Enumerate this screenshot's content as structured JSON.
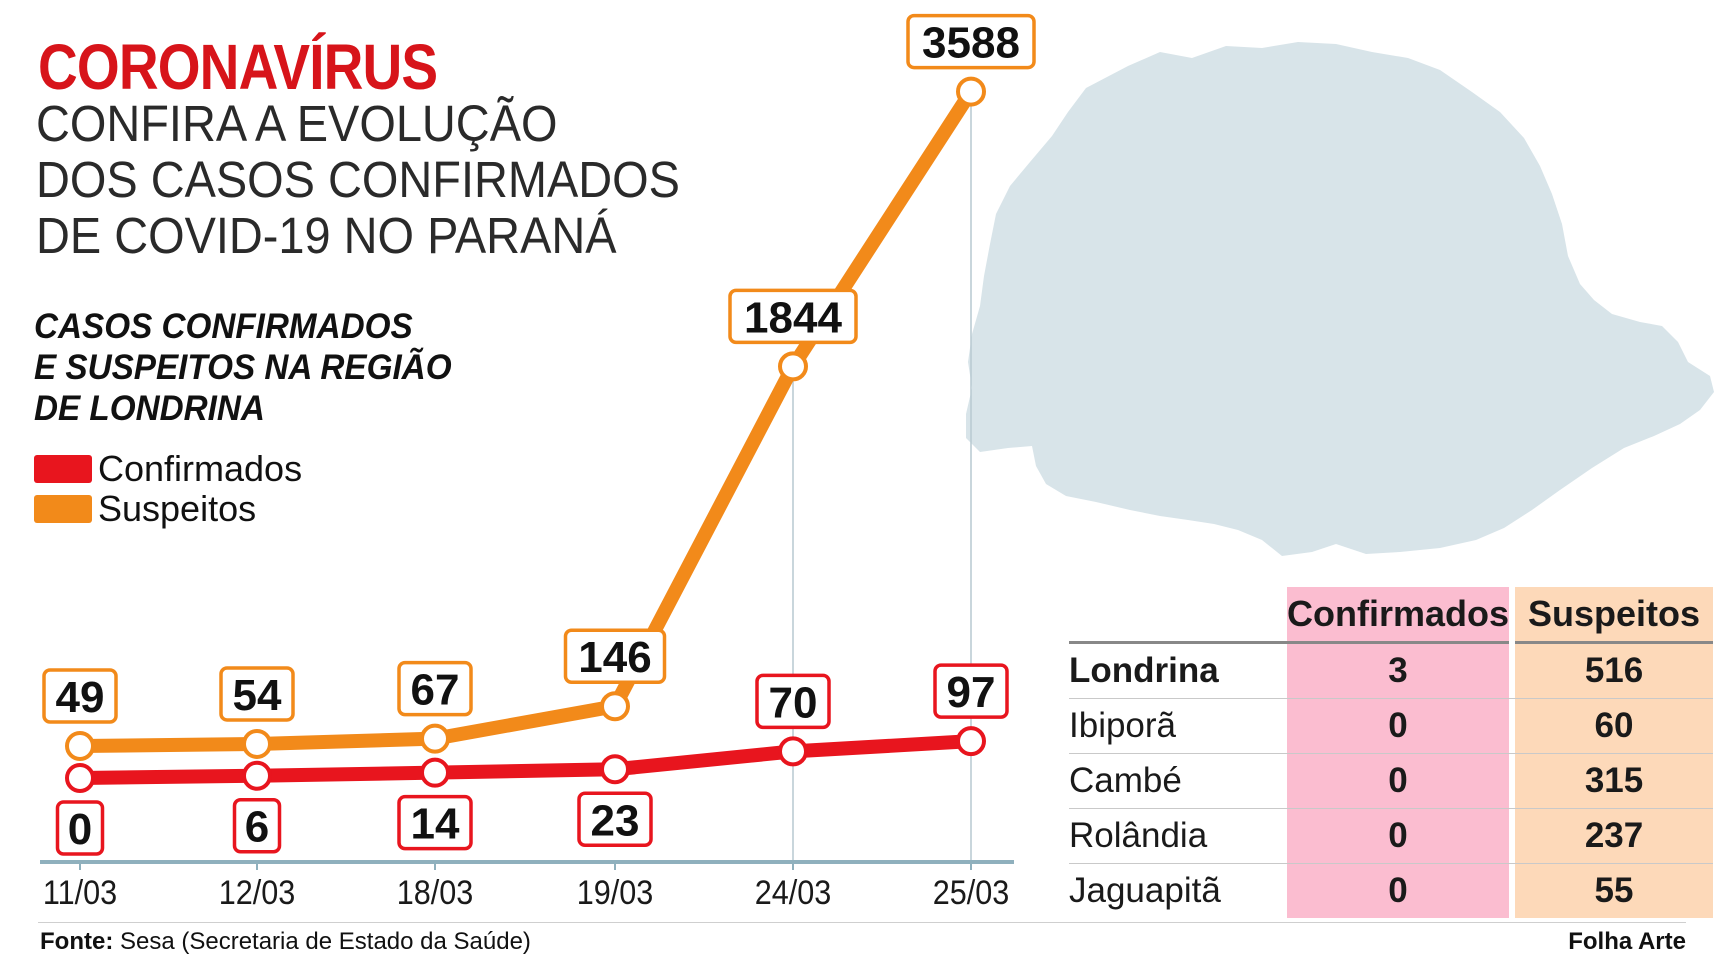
{
  "header": {
    "title": "CORONAVÍRUS",
    "subtitle_lines": [
      "CONFIRA A EVOLUÇÃO",
      "DOS CASOS CONFIRMADOS",
      "DE COVID-19 NO PARANÁ"
    ]
  },
  "section": {
    "lines": [
      "CASOS CONFIRMADOS",
      "E SUSPEITOS NA REGIÃO",
      "DE LONDRINA"
    ]
  },
  "legend": {
    "confirmed": "Confirmados",
    "suspected": "Suspeitos"
  },
  "colors": {
    "confirmed": "#e8151e",
    "suspected": "#f28a1a",
    "title": "#d7141a",
    "map": "#d8e4e9"
  },
  "chart_data": {
    "type": "line",
    "categories": [
      "11/03",
      "12/03",
      "18/03",
      "19/03",
      "24/03",
      "25/03"
    ],
    "series": [
      {
        "name": "Confirmados",
        "values": [
          0,
          6,
          14,
          23,
          70,
          97
        ]
      },
      {
        "name": "Suspeitos",
        "values": [
          49,
          54,
          67,
          146,
          1844,
          3588
        ]
      }
    ],
    "title": "CASOS CONFIRMADOS E SUSPEITOS NA REGIÃO DE LONDRINA",
    "grid": false,
    "legend_position": "left"
  },
  "table": {
    "headers": [
      "",
      "Confirmados",
      "Suspeitos"
    ],
    "rows": [
      {
        "city": "Londrina",
        "confirmed": "3",
        "suspected": "516"
      },
      {
        "city": "Ibiporã",
        "confirmed": "0",
        "suspected": "60"
      },
      {
        "city": "Cambé",
        "confirmed": "0",
        "suspected": "315"
      },
      {
        "city": "Rolândia",
        "confirmed": "0",
        "suspected": "237"
      },
      {
        "city": "Jaguapitã",
        "confirmed": "0",
        "suspected": "55"
      }
    ]
  },
  "footer": {
    "source_label": "Fonte:",
    "source_text": "Sesa (Secretaria de Estado da Saúde)",
    "credit": "Folha Arte"
  }
}
